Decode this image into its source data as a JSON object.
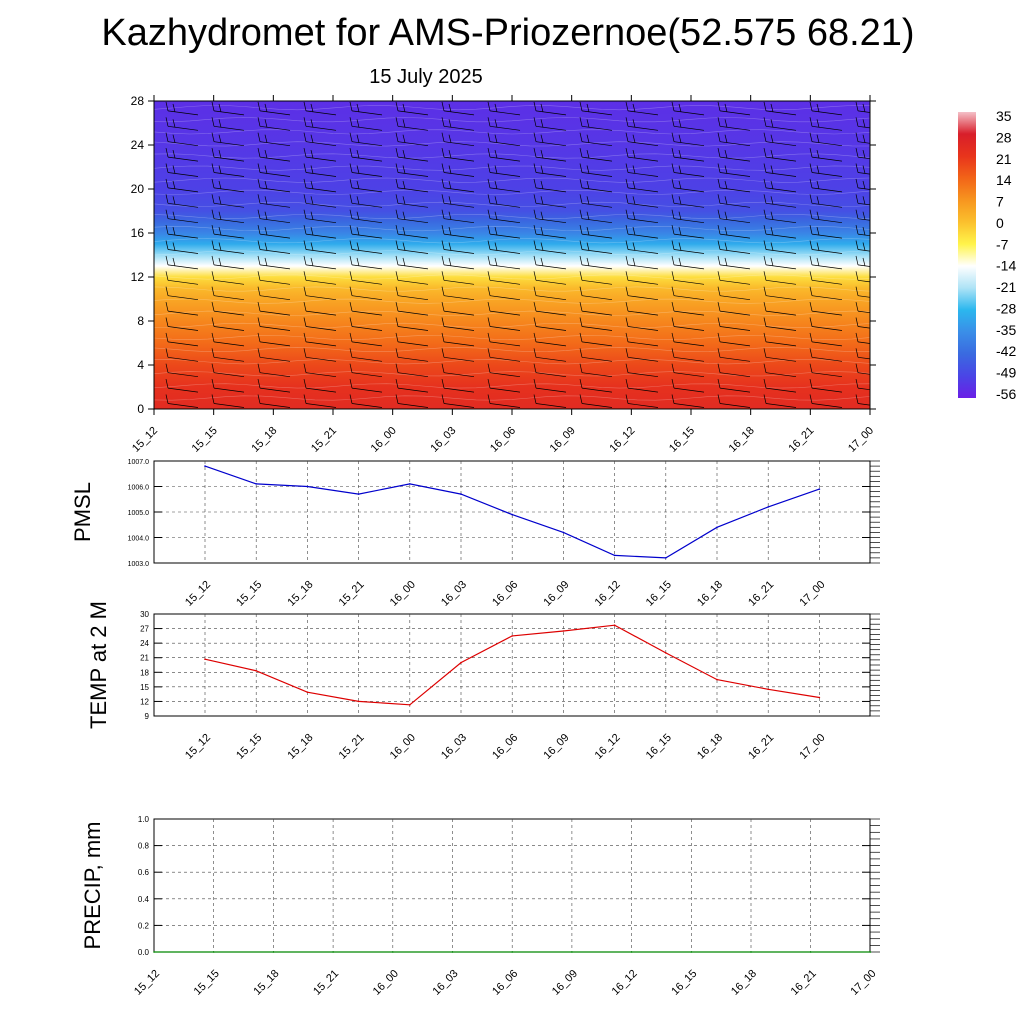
{
  "title": "Kazhydromet for AMS-Priozernoe(52.575 68.21)",
  "subtitle": "15 July 2025",
  "chart_data": [
    {
      "type": "heatmap",
      "name": "temperature-vertical-profile",
      "time_labels": [
        "15_12",
        "15_15",
        "15_18",
        "15_21",
        "16_00",
        "16_03",
        "16_06",
        "16_09",
        "16_12",
        "16_15",
        "16_18",
        "16_21",
        "17_00"
      ],
      "y_ticks": [
        "0",
        "4",
        "8",
        "12",
        "16",
        "20",
        "24",
        "28"
      ],
      "ylim": [
        0,
        28
      ],
      "colorbar_ticks": [
        "35",
        "28",
        "21",
        "14",
        "7",
        "0",
        "-7",
        "-14",
        "-21",
        "-28",
        "-35",
        "-42",
        "-49",
        "-56"
      ],
      "colorbar_stops": [
        "#f4c0c8",
        "#d81e2a",
        "#e8341c",
        "#f26418",
        "#f7951f",
        "#fbc02d",
        "#fff44a",
        "#ffffff",
        "#aee3f6",
        "#2bb7ee",
        "#3a8ee8",
        "#3a6ae0",
        "#4a45e6",
        "#6a1fe6"
      ],
      "profile": [
        {
          "y": 0,
          "value": 24
        },
        {
          "y": 2,
          "value": 22
        },
        {
          "y": 4,
          "value": 18
        },
        {
          "y": 6,
          "value": 13
        },
        {
          "y": 8,
          "value": 9
        },
        {
          "y": 10,
          "value": 4
        },
        {
          "y": 11,
          "value": 1
        },
        {
          "y": 12,
          "value": -4
        },
        {
          "y": 13,
          "value": -14
        },
        {
          "y": 14,
          "value": -22
        },
        {
          "y": 15,
          "value": -30
        },
        {
          "y": 16,
          "value": -37
        },
        {
          "y": 17,
          "value": -42
        },
        {
          "y": 18,
          "value": -47
        },
        {
          "y": 20,
          "value": -50
        },
        {
          "y": 24,
          "value": -53
        },
        {
          "y": 28,
          "value": -55
        }
      ]
    },
    {
      "type": "line",
      "ylabel": "PMSL",
      "categories": [
        "15_12",
        "15_15",
        "15_18",
        "15_21",
        "16_00",
        "16_03",
        "16_06",
        "16_09",
        "16_12",
        "16_15",
        "16_18",
        "16_21",
        "17_00"
      ],
      "values": [
        1006.8,
        1006.1,
        1006.0,
        1005.7,
        1006.1,
        1005.7,
        1004.9,
        1004.2,
        1003.3,
        1003.2,
        1004.4,
        1005.2,
        1005.9
      ],
      "ylim": [
        1003.0,
        1007.0
      ],
      "y_ticks": [
        "1003.0",
        "1004.0",
        "1005.0",
        "1006.0",
        "1007.0"
      ],
      "color": "#0000cc"
    },
    {
      "type": "line",
      "ylabel": "TEMP at 2 M",
      "categories": [
        "15_12",
        "15_15",
        "15_18",
        "15_21",
        "16_00",
        "16_03",
        "16_06",
        "16_09",
        "16_12",
        "16_15",
        "16_18",
        "16_21",
        "17_00"
      ],
      "values": [
        20.7,
        18.3,
        13.9,
        12.0,
        11.3,
        20.0,
        25.5,
        26.5,
        27.7,
        22.0,
        16.5,
        14.5,
        12.8
      ],
      "ylim": [
        9,
        30
      ],
      "y_ticks": [
        "9",
        "12",
        "15",
        "18",
        "21",
        "24",
        "27",
        "30"
      ],
      "color": "#dd0000"
    },
    {
      "type": "line",
      "ylabel": "PRECIP, mm",
      "categories": [
        "15_12",
        "15_15",
        "15_18",
        "15_21",
        "16_00",
        "16_03",
        "16_06",
        "16_09",
        "16_12",
        "16_15",
        "16_18",
        "16_21",
        "17_00"
      ],
      "values": [
        0,
        0,
        0,
        0,
        0,
        0,
        0,
        0,
        0,
        0,
        0,
        0,
        0
      ],
      "ylim": [
        0,
        1
      ],
      "y_ticks": [
        "0.0",
        "0.2",
        "0.4",
        "0.6",
        "0.8",
        "1.0"
      ],
      "color": "#008800"
    }
  ]
}
